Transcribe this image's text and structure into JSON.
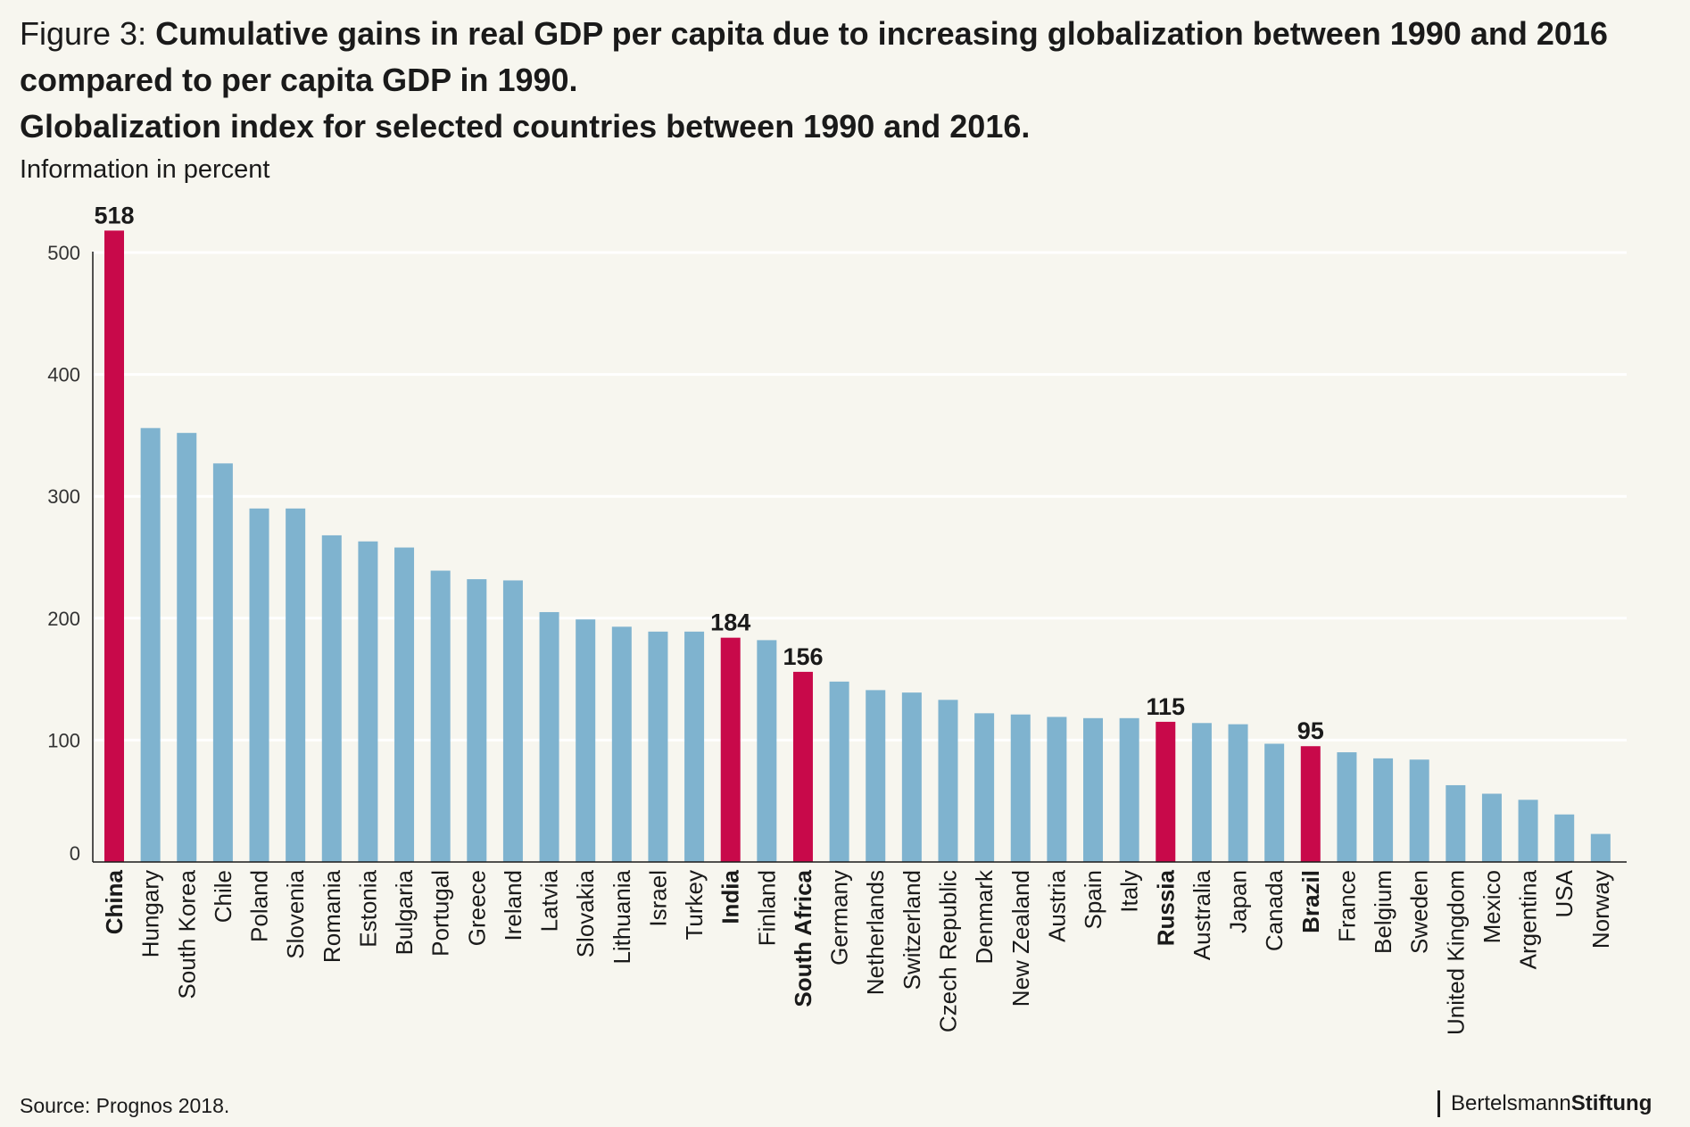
{
  "header": {
    "figure_label": "Figure 3:",
    "title_line1": "Cumulative gains in real GDP per capita due to increasing globalization between 1990 and 2016",
    "title_line2": "compared to per capita GDP in 1990.",
    "title_line3": "Globalization index for selected countries between 1990 and 2016.",
    "subtitle": "Information in percent"
  },
  "footer": {
    "source": "Source: Prognos 2018.",
    "brand_regular": "Bertelsmann",
    "brand_bold": "Stiftung"
  },
  "colors": {
    "background": "#f7f6ef",
    "bar_default": "#7fb3cf",
    "bar_highlight": "#c8094a",
    "gridline": "#ffffff",
    "axis": "#1a1a1a"
  },
  "chart_data": {
    "type": "bar",
    "title": "Cumulative gains in real GDP per capita due to increasing globalization between 1990 and 2016 compared to per capita GDP in 1990.",
    "xlabel": "",
    "ylabel": "",
    "ylim": [
      0,
      520
    ],
    "yticks": [
      0,
      100,
      200,
      300,
      400,
      500
    ],
    "grid": true,
    "categories": [
      "China",
      "Hungary",
      "South Korea",
      "Chile",
      "Poland",
      "Slovenia",
      "Romania",
      "Estonia",
      "Bulgaria",
      "Portugal",
      "Greece",
      "Ireland",
      "Latvia",
      "Slovakia",
      "Lithuania",
      "Israel",
      "Turkey",
      "India",
      "Finland",
      "South Africa",
      "Germany",
      "Netherlands",
      "Switzerland",
      "Czech Republic",
      "Denmark",
      "New Zealand",
      "Austria",
      "Spain",
      "Italy",
      "Russia",
      "Australia",
      "Japan",
      "Canada",
      "Brazil",
      "France",
      "Belgium",
      "Sweden",
      "United Kingdom",
      "Mexico",
      "Argentina",
      "USA",
      "Norway"
    ],
    "values": [
      518,
      356,
      352,
      327,
      290,
      290,
      268,
      263,
      258,
      239,
      232,
      231,
      205,
      199,
      193,
      189,
      189,
      184,
      182,
      156,
      148,
      141,
      139,
      133,
      122,
      121,
      119,
      118,
      118,
      115,
      114,
      113,
      97,
      95,
      90,
      85,
      84,
      63,
      56,
      51,
      39,
      23
    ],
    "highlighted": [
      "China",
      "India",
      "South Africa",
      "Russia",
      "Brazil"
    ],
    "data_labels": {
      "China": "518",
      "India": "184",
      "South Africa": "156",
      "Russia": "115",
      "Brazil": "95"
    }
  }
}
